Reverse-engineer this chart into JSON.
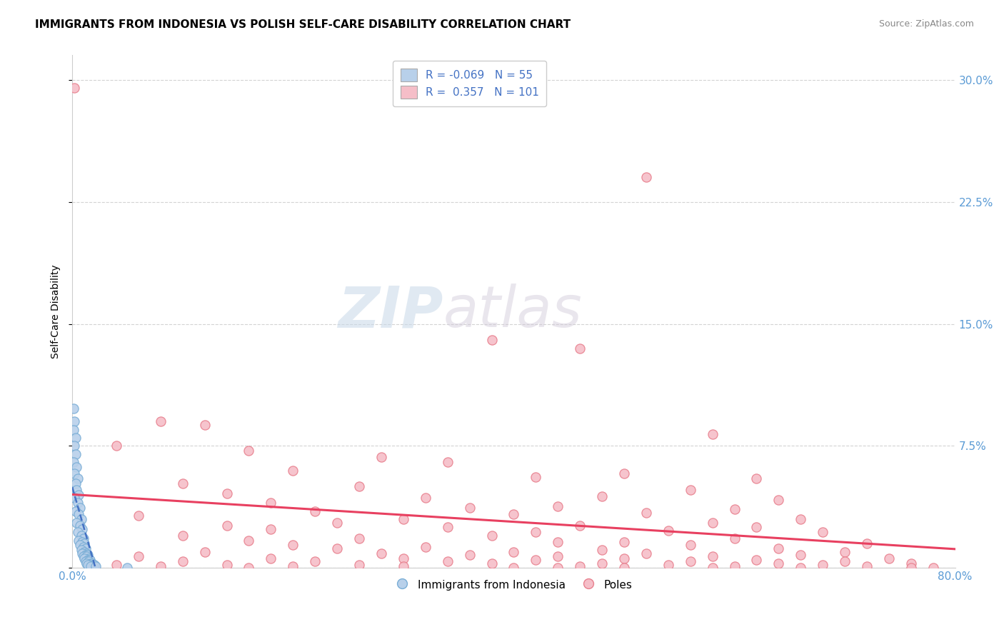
{
  "title": "IMMIGRANTS FROM INDONESIA VS POLISH SELF-CARE DISABILITY CORRELATION CHART",
  "source": "Source: ZipAtlas.com",
  "ylabel": "Self-Care Disability",
  "xlim": [
    0,
    0.8
  ],
  "ylim": [
    0,
    0.315
  ],
  "xticks": [
    0.0,
    0.1,
    0.2,
    0.3,
    0.4,
    0.5,
    0.6,
    0.7,
    0.8
  ],
  "yticks": [
    0.0,
    0.075,
    0.15,
    0.225,
    0.3
  ],
  "ytick_labels": [
    "",
    "7.5%",
    "15.0%",
    "22.5%",
    "30.0%"
  ],
  "axis_color": "#5b9bd5",
  "grid_color": "#c8c8c8",
  "watermark_zip": "ZIP",
  "watermark_atlas": "atlas",
  "legend_blue_r": "-0.069",
  "legend_blue_n": "55",
  "legend_pink_r": "0.357",
  "legend_pink_n": "101",
  "blue_series_label": "Immigrants from Indonesia",
  "pink_series_label": "Poles",
  "blue_color": "#b8d0ea",
  "blue_edge": "#7aaed6",
  "pink_color": "#f5bec8",
  "pink_edge": "#e8808e",
  "blue_trend_color": "#4472c4",
  "pink_trend_color": "#e84060",
  "blue_points": [
    [
      0.001,
      0.098
    ],
    [
      0.002,
      0.09
    ],
    [
      0.001,
      0.085
    ],
    [
      0.003,
      0.08
    ],
    [
      0.002,
      0.075
    ],
    [
      0.003,
      0.07
    ],
    [
      0.001,
      0.065
    ],
    [
      0.004,
      0.062
    ],
    [
      0.002,
      0.058
    ],
    [
      0.005,
      0.055
    ],
    [
      0.003,
      0.052
    ],
    [
      0.004,
      0.048
    ],
    [
      0.006,
      0.045
    ],
    [
      0.002,
      0.043
    ],
    [
      0.005,
      0.04
    ],
    [
      0.007,
      0.037
    ],
    [
      0.003,
      0.035
    ],
    [
      0.006,
      0.033
    ],
    [
      0.008,
      0.03
    ],
    [
      0.004,
      0.028
    ],
    [
      0.007,
      0.026
    ],
    [
      0.009,
      0.024
    ],
    [
      0.005,
      0.022
    ],
    [
      0.008,
      0.02
    ],
    [
      0.01,
      0.018
    ],
    [
      0.006,
      0.017
    ],
    [
      0.009,
      0.016
    ],
    [
      0.011,
      0.015
    ],
    [
      0.007,
      0.014
    ],
    [
      0.01,
      0.013
    ],
    [
      0.012,
      0.012
    ],
    [
      0.008,
      0.011
    ],
    [
      0.011,
      0.01
    ],
    [
      0.013,
      0.009
    ],
    [
      0.009,
      0.009
    ],
    [
      0.012,
      0.008
    ],
    [
      0.014,
      0.008
    ],
    [
      0.01,
      0.007
    ],
    [
      0.013,
      0.007
    ],
    [
      0.015,
      0.006
    ],
    [
      0.011,
      0.006
    ],
    [
      0.014,
      0.005
    ],
    [
      0.016,
      0.005
    ],
    [
      0.012,
      0.004
    ],
    [
      0.015,
      0.004
    ],
    [
      0.017,
      0.003
    ],
    [
      0.013,
      0.003
    ],
    [
      0.018,
      0.003
    ],
    [
      0.016,
      0.002
    ],
    [
      0.019,
      0.002
    ],
    [
      0.014,
      0.002
    ],
    [
      0.02,
      0.002
    ],
    [
      0.017,
      0.001
    ],
    [
      0.021,
      0.001
    ],
    [
      0.05,
      0.0
    ]
  ],
  "pink_points": [
    [
      0.002,
      0.295
    ],
    [
      0.52,
      0.24
    ],
    [
      0.38,
      0.14
    ],
    [
      0.46,
      0.135
    ],
    [
      0.08,
      0.09
    ],
    [
      0.12,
      0.088
    ],
    [
      0.58,
      0.082
    ],
    [
      0.04,
      0.075
    ],
    [
      0.16,
      0.072
    ],
    [
      0.28,
      0.068
    ],
    [
      0.34,
      0.065
    ],
    [
      0.2,
      0.06
    ],
    [
      0.5,
      0.058
    ],
    [
      0.42,
      0.056
    ],
    [
      0.62,
      0.055
    ],
    [
      0.1,
      0.052
    ],
    [
      0.26,
      0.05
    ],
    [
      0.56,
      0.048
    ],
    [
      0.14,
      0.046
    ],
    [
      0.48,
      0.044
    ],
    [
      0.32,
      0.043
    ],
    [
      0.64,
      0.042
    ],
    [
      0.18,
      0.04
    ],
    [
      0.44,
      0.038
    ],
    [
      0.36,
      0.037
    ],
    [
      0.6,
      0.036
    ],
    [
      0.22,
      0.035
    ],
    [
      0.52,
      0.034
    ],
    [
      0.4,
      0.033
    ],
    [
      0.06,
      0.032
    ],
    [
      0.3,
      0.03
    ],
    [
      0.66,
      0.03
    ],
    [
      0.24,
      0.028
    ],
    [
      0.58,
      0.028
    ],
    [
      0.14,
      0.026
    ],
    [
      0.46,
      0.026
    ],
    [
      0.34,
      0.025
    ],
    [
      0.62,
      0.025
    ],
    [
      0.18,
      0.024
    ],
    [
      0.54,
      0.023
    ],
    [
      0.42,
      0.022
    ],
    [
      0.68,
      0.022
    ],
    [
      0.1,
      0.02
    ],
    [
      0.38,
      0.02
    ],
    [
      0.26,
      0.018
    ],
    [
      0.6,
      0.018
    ],
    [
      0.16,
      0.017
    ],
    [
      0.5,
      0.016
    ],
    [
      0.44,
      0.016
    ],
    [
      0.72,
      0.015
    ],
    [
      0.2,
      0.014
    ],
    [
      0.56,
      0.014
    ],
    [
      0.32,
      0.013
    ],
    [
      0.64,
      0.012
    ],
    [
      0.24,
      0.012
    ],
    [
      0.48,
      0.011
    ],
    [
      0.12,
      0.01
    ],
    [
      0.4,
      0.01
    ],
    [
      0.7,
      0.01
    ],
    [
      0.28,
      0.009
    ],
    [
      0.52,
      0.009
    ],
    [
      0.36,
      0.008
    ],
    [
      0.66,
      0.008
    ],
    [
      0.06,
      0.007
    ],
    [
      0.44,
      0.007
    ],
    [
      0.58,
      0.007
    ],
    [
      0.3,
      0.006
    ],
    [
      0.74,
      0.006
    ],
    [
      0.18,
      0.006
    ],
    [
      0.5,
      0.006
    ],
    [
      0.42,
      0.005
    ],
    [
      0.62,
      0.005
    ],
    [
      0.1,
      0.004
    ],
    [
      0.56,
      0.004
    ],
    [
      0.34,
      0.004
    ],
    [
      0.7,
      0.004
    ],
    [
      0.22,
      0.004
    ],
    [
      0.48,
      0.003
    ],
    [
      0.76,
      0.003
    ],
    [
      0.38,
      0.003
    ],
    [
      0.64,
      0.003
    ],
    [
      0.14,
      0.002
    ],
    [
      0.54,
      0.002
    ],
    [
      0.26,
      0.002
    ],
    [
      0.68,
      0.002
    ],
    [
      0.04,
      0.002
    ],
    [
      0.46,
      0.001
    ],
    [
      0.2,
      0.001
    ],
    [
      0.72,
      0.001
    ],
    [
      0.3,
      0.001
    ],
    [
      0.6,
      0.001
    ],
    [
      0.08,
      0.001
    ],
    [
      0.58,
      0.0
    ],
    [
      0.4,
      0.0
    ],
    [
      0.76,
      0.0
    ],
    [
      0.16,
      0.0
    ],
    [
      0.5,
      0.0
    ],
    [
      0.66,
      0.0
    ],
    [
      0.02,
      0.0
    ],
    [
      0.78,
      0.0
    ],
    [
      0.44,
      0.0
    ]
  ]
}
